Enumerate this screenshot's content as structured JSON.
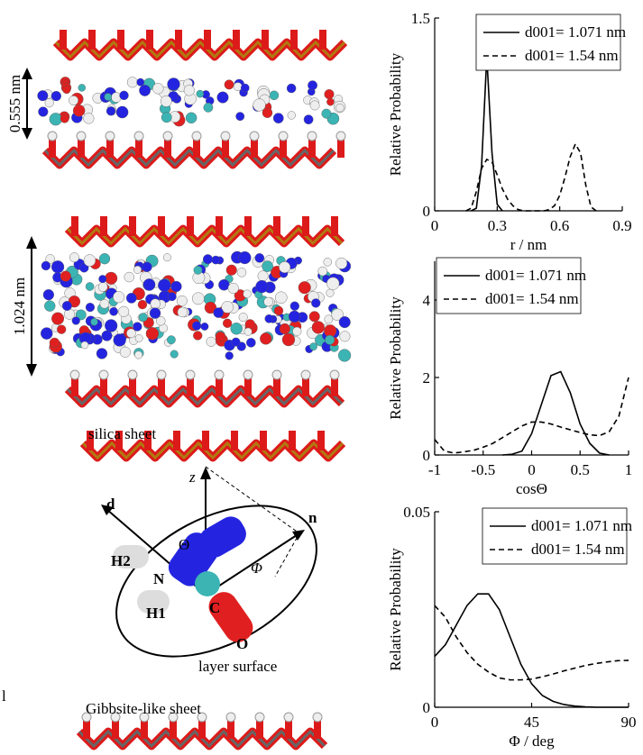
{
  "chart_data": [
    {
      "type": "line",
      "xlabel": "r / nm",
      "ylabel": "Relative Probability",
      "xlim": [
        0,
        0.9
      ],
      "xticks": [
        0,
        0.3,
        0.6,
        0.9
      ],
      "ylim": [
        0,
        1.5
      ],
      "yticks": [
        0,
        1.5
      ],
      "legend": "top-right",
      "x": [
        0.15,
        0.175,
        0.2,
        0.225,
        0.25,
        0.275,
        0.3,
        0.325,
        0.35,
        0.375,
        0.4,
        0.425,
        0.45,
        0.475,
        0.5,
        0.525,
        0.55,
        0.575,
        0.6,
        0.625,
        0.65,
        0.675,
        0.7,
        0.725,
        0.75,
        0.775
      ],
      "series": [
        {
          "name": "d001= 1.071 nm",
          "color": "#000000",
          "line_style": "solid",
          "values": [
            null,
            0,
            0.02,
            0.35,
            1.2,
            0.45,
            0.05,
            0,
            null,
            null,
            null,
            null,
            null,
            null,
            null,
            null,
            null,
            null,
            null,
            null,
            null,
            null,
            null,
            null,
            null,
            null
          ]
        },
        {
          "name": "d001= 1.54 nm",
          "color": "#000000",
          "line_style": "dashed",
          "values": [
            0,
            0.02,
            0.15,
            0.33,
            0.4,
            0.38,
            0.28,
            0.17,
            0.09,
            0.04,
            0.01,
            0,
            0,
            0,
            0,
            0,
            0.01,
            0.04,
            0.12,
            0.26,
            0.42,
            0.52,
            0.45,
            0.2,
            0.03,
            0
          ]
        }
      ]
    },
    {
      "type": "line",
      "xlabel": "cosΘ",
      "ylabel": "Relative Probability",
      "xlim": [
        -1,
        1
      ],
      "xticks": [
        -1,
        -0.5,
        0,
        0.5,
        1
      ],
      "ylim": [
        0,
        5
      ],
      "yticks": [
        0,
        2,
        4
      ],
      "legend": "top-left",
      "x": [
        -1,
        -0.9,
        -0.8,
        -0.7,
        -0.6,
        -0.5,
        -0.4,
        -0.3,
        -0.2,
        -0.1,
        0,
        0.1,
        0.2,
        0.3,
        0.4,
        0.5,
        0.6,
        0.7,
        0.8,
        0.9,
        1
      ],
      "series": [
        {
          "name": "d001= 1.071 nm",
          "color": "#000000",
          "line_style": "solid",
          "values": [
            null,
            null,
            null,
            null,
            null,
            null,
            null,
            0,
            0.02,
            0.1,
            0.55,
            1.3,
            2.05,
            2.15,
            1.6,
            0.8,
            0.3,
            0.05,
            0,
            null,
            null
          ]
        },
        {
          "name": "d001= 1.54 nm",
          "color": "#000000",
          "line_style": "dashed",
          "values": [
            0.4,
            0.1,
            0.05,
            0.08,
            0.12,
            0.2,
            0.3,
            0.45,
            0.6,
            0.75,
            0.85,
            0.85,
            0.8,
            0.72,
            0.65,
            0.58,
            0.52,
            0.5,
            0.6,
            1.0,
            2.0
          ]
        }
      ]
    },
    {
      "type": "line",
      "xlabel": "Φ / deg",
      "ylabel": "Relative Probability",
      "xlim": [
        0,
        90
      ],
      "xticks": [
        0,
        45,
        90
      ],
      "ylim": [
        0,
        0.05
      ],
      "yticks": [
        0,
        0.05
      ],
      "legend": "top-right",
      "x": [
        0,
        5,
        10,
        15,
        20,
        25,
        30,
        35,
        40,
        45,
        50,
        55,
        60,
        65,
        70,
        75,
        80,
        85,
        90
      ],
      "series": [
        {
          "name": "d001= 1.071 nm",
          "color": "#000000",
          "line_style": "solid",
          "values": [
            0.013,
            0.016,
            0.021,
            0.026,
            0.029,
            0.029,
            0.025,
            0.018,
            0.011,
            0.006,
            0.003,
            0.0015,
            0.0007,
            0.0003,
            0.0001,
            0,
            0,
            0,
            0
          ]
        },
        {
          "name": "d001= 1.54 nm",
          "color": "#000000",
          "line_style": "dashed",
          "values": [
            0.026,
            0.023,
            0.018,
            0.014,
            0.011,
            0.009,
            0.0075,
            0.007,
            0.007,
            0.0072,
            0.0078,
            0.0085,
            0.0093,
            0.01,
            0.0107,
            0.0112,
            0.0116,
            0.0119,
            0.012
          ]
        }
      ]
    }
  ],
  "diagram": {
    "spacing_top": "0.555 nm",
    "spacing_middle": "1.024 nm",
    "silica": "silica sheet",
    "axis_z": "z",
    "axis_d": "d",
    "axis_n": "n",
    "theta": "Θ",
    "phi": "Φ",
    "atom_h2": "H2",
    "atom_h1": "H1",
    "atom_n": "N",
    "atom_c": "C",
    "atom_o": "O",
    "surface": "layer surface",
    "gibbsite": "Gibbsite-like sheet",
    "margin_mark": "l"
  }
}
